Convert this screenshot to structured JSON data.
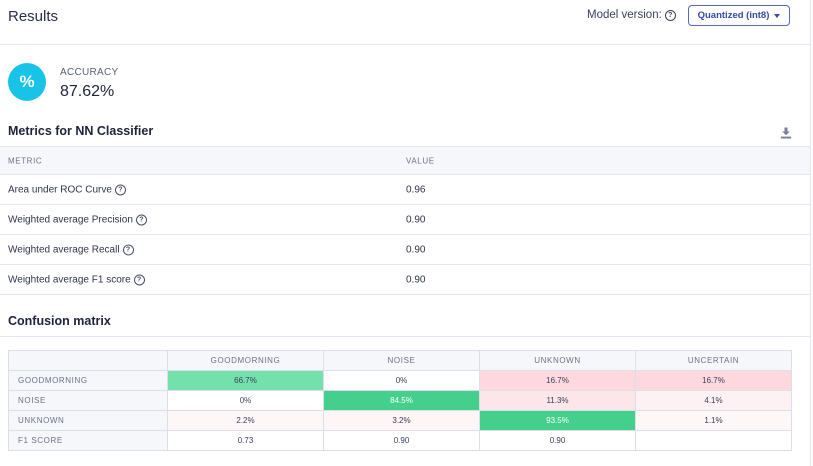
{
  "header": {
    "title": "Results",
    "model_version_label": "Model version:",
    "model_select_value": "Quantized (int8)"
  },
  "accuracy": {
    "label": "ACCURACY",
    "value": "87.62%",
    "icon_glyph": "%"
  },
  "metrics_section": {
    "title": "Metrics for NN Classifier",
    "columns": [
      "METRIC",
      "VALUE"
    ],
    "rows": [
      {
        "metric": "Area under ROC Curve",
        "value": "0.96"
      },
      {
        "metric": "Weighted average Precision",
        "value": "0.90"
      },
      {
        "metric": "Weighted average Recall",
        "value": "0.90"
      },
      {
        "metric": "Weighted average F1 score",
        "value": "0.90"
      }
    ]
  },
  "confusion_matrix": {
    "title": "Confusion matrix",
    "columns": [
      "GOODMORNING",
      "NOISE",
      "UNKNOWN",
      "UNCERTAIN"
    ],
    "rows": [
      {
        "label": "GOODMORNING",
        "cells": [
          "66.7%",
          "0%",
          "16.7%",
          "16.7%"
        ]
      },
      {
        "label": "NOISE",
        "cells": [
          "0%",
          "84.5%",
          "11.3%",
          "4.1%"
        ]
      },
      {
        "label": "UNKNOWN",
        "cells": [
          "2.2%",
          "3.2%",
          "93.5%",
          "1.1%"
        ]
      },
      {
        "label": "F1 SCORE",
        "cells": [
          "0.73",
          "0.90",
          "0.90",
          ""
        ]
      }
    ],
    "cell_colors": [
      [
        "#74e0ab",
        "#ffffff",
        "#fdd9df",
        "#fdd9df"
      ],
      [
        "#ffffff",
        "#44d08c",
        "#fde6ea",
        "#fdf1f3"
      ],
      [
        "#fdf7f8",
        "#fdf5f6",
        "#44d08c",
        "#fdf7f8"
      ],
      [
        "#ffffff",
        "#ffffff",
        "#ffffff",
        "#ffffff"
      ]
    ],
    "cell_text_colors": [
      [
        "#3a3f58",
        "#3a3f58",
        "#3a3f58",
        "#3a3f58"
      ],
      [
        "#3a3f58",
        "#ffffff",
        "#3a3f58",
        "#3a3f58"
      ],
      [
        "#3a3f58",
        "#3a3f58",
        "#ffffff",
        "#3a3f58"
      ],
      [
        "#3a3f58",
        "#3a3f58",
        "#3a3f58",
        "#3a3f58"
      ]
    ]
  },
  "icons": {
    "help": "question-circle-icon",
    "download": "download-icon",
    "select_caret": "caret-down-icon",
    "accuracy": "percent-icon"
  }
}
